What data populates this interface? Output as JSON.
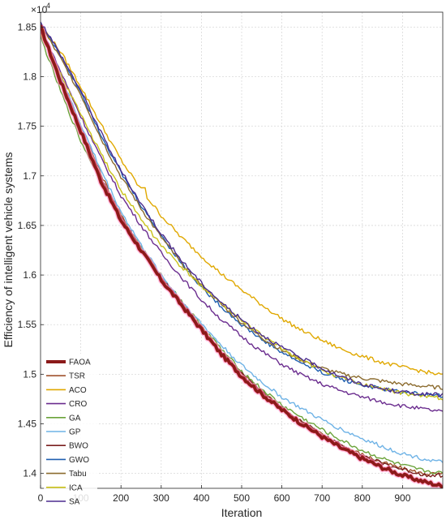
{
  "chart_data": {
    "type": "line",
    "title": "",
    "xlabel": "Iteration",
    "ylabel": "Efficiency of intelligent vehicle systems",
    "y_exponent_label": "×10",
    "y_exponent_power": "4",
    "xlim": [
      0,
      1000
    ],
    "ylim": [
      13850,
      18650
    ],
    "x_ticks": [
      0,
      100,
      200,
      300,
      400,
      500,
      600,
      700,
      800,
      900
    ],
    "y_ticks": [
      14000,
      14500,
      15000,
      15500,
      16000,
      16500,
      17000,
      17500,
      18000,
      18500
    ],
    "x_tick_labels": [
      "0",
      "100",
      "200",
      "300",
      "400",
      "500",
      "600",
      "700",
      "800",
      "900"
    ],
    "y_tick_labels": [
      "1.4",
      "1.45",
      "1.5",
      "1.55",
      "1.6",
      "1.65",
      "1.7",
      "1.75",
      "1.8",
      "1.85"
    ],
    "grid": true,
    "legend_position": "bottom-left",
    "x": [
      0,
      50,
      100,
      150,
      200,
      250,
      300,
      350,
      400,
      450,
      500,
      550,
      600,
      650,
      700,
      750,
      800,
      850,
      900,
      950,
      1000
    ],
    "series": [
      {
        "name": "FAOA",
        "color": "#8B1A1A",
        "width": 3.5,
        "glow": true,
        "values": [
          18500,
          17950,
          17450,
          16950,
          16550,
          16250,
          15950,
          15700,
          15450,
          15200,
          14980,
          14800,
          14640,
          14500,
          14370,
          14250,
          14150,
          14060,
          13980,
          13920,
          13870
        ]
      },
      {
        "name": "TSR",
        "color": "#A0522D",
        "width": 1.4,
        "values": [
          18520,
          18000,
          17500,
          17020,
          16600,
          16280,
          15980,
          15730,
          15480,
          15230,
          15010,
          14830,
          14660,
          14520,
          14390,
          14280,
          14190,
          14110,
          14050,
          14000,
          13990
        ]
      },
      {
        "name": "ACO",
        "color": "#E0A800",
        "width": 1.4,
        "steps": [
          [
            130,
            17700
          ],
          [
            265,
            16880
          ]
        ],
        "values": [
          18520,
          18250,
          17900,
          17520,
          17160,
          16860,
          16600,
          16380,
          16190,
          16010,
          15850,
          15700,
          15560,
          15440,
          15340,
          15250,
          15180,
          15120,
          15070,
          15030,
          14990
        ]
      },
      {
        "name": "CRO",
        "color": "#6B2D8F",
        "width": 1.4,
        "values": [
          18500,
          18050,
          17600,
          17180,
          16800,
          16500,
          16220,
          15980,
          15750,
          15550,
          15380,
          15230,
          15100,
          14990,
          14900,
          14830,
          14770,
          14720,
          14680,
          14650,
          14620
        ]
      },
      {
        "name": "GA",
        "color": "#6BA33A",
        "width": 1.4,
        "values": [
          18400,
          17850,
          17350,
          16950,
          16580,
          16280,
          16000,
          15740,
          15490,
          15250,
          15030,
          14850,
          14690,
          14560,
          14440,
          14330,
          14230,
          14150,
          14080,
          14030,
          14000
        ]
      },
      {
        "name": "GP",
        "color": "#6FB3E6",
        "width": 1.4,
        "values": [
          18480,
          18000,
          17520,
          17060,
          16640,
          16300,
          16000,
          15740,
          15510,
          15290,
          15090,
          14920,
          14770,
          14650,
          14540,
          14440,
          14350,
          14270,
          14200,
          14150,
          14110
        ]
      },
      {
        "name": "BWO",
        "color": "#7A1F1F",
        "width": 1.4,
        "values": [
          18460,
          17960,
          17460,
          16980,
          16580,
          16270,
          15970,
          15720,
          15470,
          15220,
          15000,
          14820,
          14660,
          14520,
          14390,
          14280,
          14180,
          14100,
          14040,
          13990,
          13980
        ]
      },
      {
        "name": "GWO",
        "color": "#1F5FB0",
        "width": 1.4,
        "values": [
          18550,
          18200,
          17850,
          17420,
          17030,
          16700,
          16400,
          16120,
          15880,
          15680,
          15500,
          15350,
          15220,
          15110,
          15020,
          14950,
          14890,
          14850,
          14820,
          14800,
          14780
        ]
      },
      {
        "name": "Tabu",
        "color": "#8B6B2E",
        "width": 1.4,
        "values": [
          18520,
          18180,
          17820,
          17380,
          16990,
          16670,
          16380,
          16120,
          15900,
          15700,
          15520,
          15370,
          15240,
          15140,
          15060,
          15000,
          14960,
          14930,
          14900,
          14880,
          14860
        ]
      },
      {
        "name": "ICA",
        "color": "#C9C21A",
        "width": 1.4,
        "values": [
          18450,
          18020,
          17620,
          17220,
          16860,
          16560,
          16300,
          16080,
          15890,
          15710,
          15540,
          15390,
          15260,
          15140,
          15040,
          14960,
          14900,
          14850,
          14810,
          14780,
          14760
        ]
      },
      {
        "name": "SA",
        "color": "#4B2C8F",
        "width": 1.4,
        "values": [
          18560,
          18220,
          17860,
          17440,
          17050,
          16720,
          16420,
          16150,
          15920,
          15720,
          15550,
          15400,
          15270,
          15160,
          15060,
          14970,
          14900,
          14850,
          14820,
          14800,
          14790
        ]
      }
    ]
  }
}
